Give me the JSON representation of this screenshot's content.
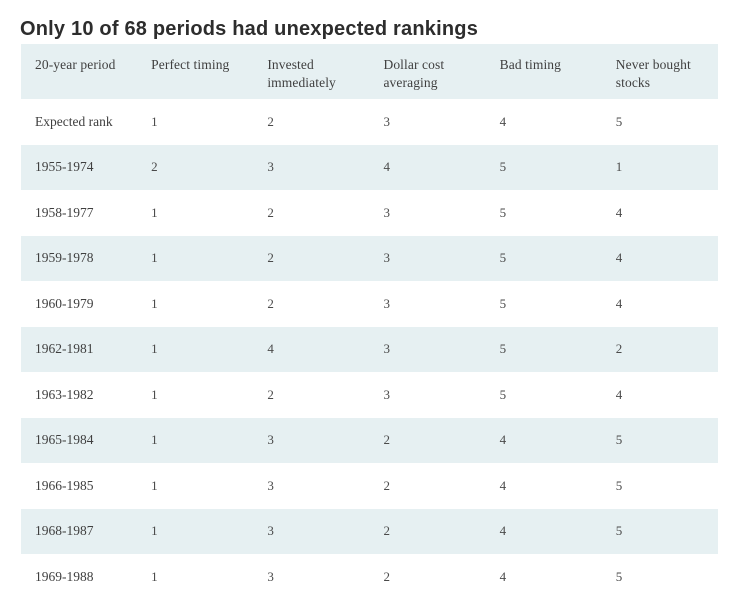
{
  "title": "Only 10 of 68 periods had unexpected rankings",
  "colors": {
    "stripe": "#e6f0f2",
    "title_text": "#2d2d2d",
    "body_text": "#3f3f3f",
    "background": "#ffffff"
  },
  "chart_data": {
    "type": "table",
    "title": "Only 10 of 68 periods had unexpected rankings",
    "columns": [
      "20-year period",
      "Perfect timing",
      "Invested immediately",
      "Dollar cost averaging",
      "Bad timing",
      "Never bought stocks"
    ],
    "rows": [
      [
        "Expected rank",
        "1",
        "2",
        "3",
        "4",
        "5"
      ],
      [
        "1955-1974",
        "2",
        "3",
        "4",
        "5",
        "1"
      ],
      [
        "1958-1977",
        "1",
        "2",
        "3",
        "5",
        "4"
      ],
      [
        "1959-1978",
        "1",
        "2",
        "3",
        "5",
        "4"
      ],
      [
        "1960-1979",
        "1",
        "2",
        "3",
        "5",
        "4"
      ],
      [
        "1962-1981",
        "1",
        "4",
        "3",
        "5",
        "2"
      ],
      [
        "1963-1982",
        "1",
        "2",
        "3",
        "5",
        "4"
      ],
      [
        "1965-1984",
        "1",
        "3",
        "2",
        "4",
        "5"
      ],
      [
        "1966-1985",
        "1",
        "3",
        "2",
        "4",
        "5"
      ],
      [
        "1968-1987",
        "1",
        "3",
        "2",
        "4",
        "5"
      ],
      [
        "1969-1988",
        "1",
        "3",
        "2",
        "4",
        "5"
      ]
    ],
    "layout_hints": {
      "header_background": "#e6f0f2",
      "row_striping": "alternating, first data row white, second tinted",
      "grid": "off"
    }
  }
}
